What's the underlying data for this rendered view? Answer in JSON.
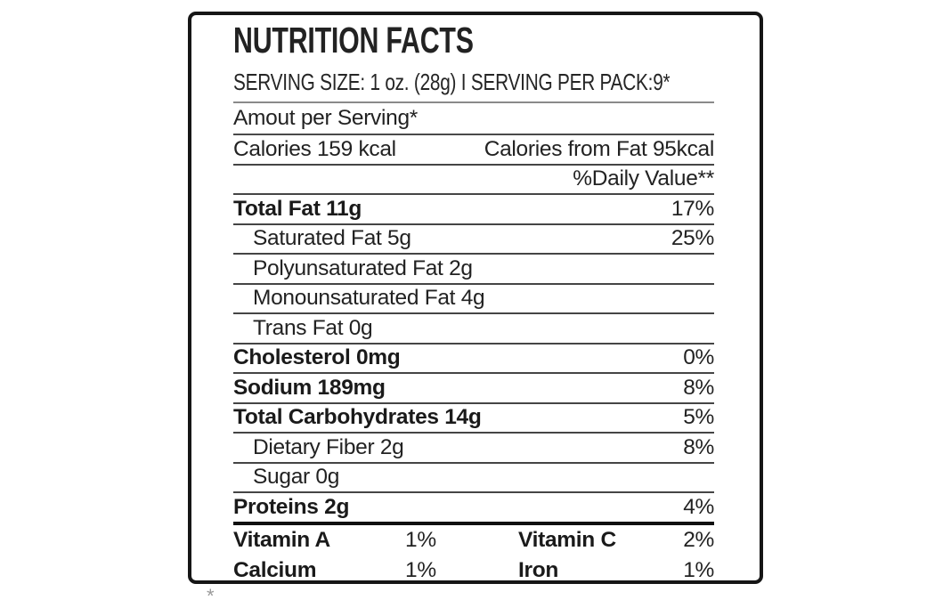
{
  "label": {
    "title": "NUTRITION FACTS",
    "serving_line": "SERVING SIZE: 1 oz. (28g) I SERVING PER PACK:9*",
    "amount_per_serving": "Amout per Serving*",
    "calories": "Calories 159 kcal",
    "calories_from_fat": "Calories from Fat 95kcal",
    "daily_value_header": "%Daily Value**",
    "rows": [
      {
        "label": "Total Fat 11g",
        "dv": "17%"
      },
      {
        "label": "Saturated Fat 5g",
        "dv": "25%"
      },
      {
        "label": "Polyunsaturated Fat 2g",
        "dv": ""
      },
      {
        "label": "Monounsaturated Fat 4g",
        "dv": ""
      },
      {
        "label": "Trans Fat 0g",
        "dv": ""
      },
      {
        "label": "Cholesterol 0mg",
        "dv": "0%"
      },
      {
        "label": "Sodium 189mg",
        "dv": "8%"
      },
      {
        "label": "Total Carbohydrates 14g",
        "dv": "5%"
      },
      {
        "label": "Dietary Fiber 2g",
        "dv": "8%"
      },
      {
        "label": "Sugar 0g",
        "dv": ""
      },
      {
        "label": "Proteins 2g",
        "dv": "4%"
      }
    ],
    "micros": [
      {
        "name": "Vitamin A",
        "value": "1%"
      },
      {
        "name": "Vitamin C",
        "value": "2%"
      },
      {
        "name": "Calcium",
        "value": "1%"
      },
      {
        "name": "Iron",
        "value": "1%"
      }
    ],
    "footnote_mark": "*",
    "colors": {
      "text": "#1e1e1e",
      "border": "#161616",
      "separator": "#454545",
      "light_separator": "#8a8a8a"
    }
  }
}
